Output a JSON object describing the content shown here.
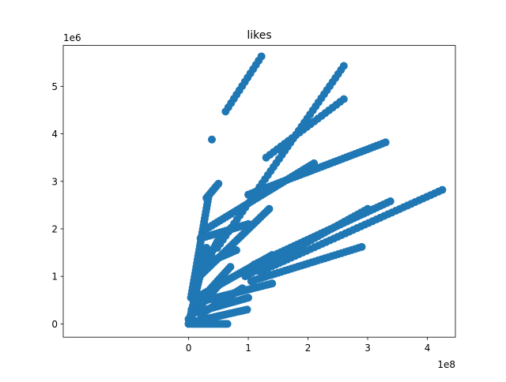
{
  "chart_data": {
    "type": "scatter",
    "title": "likes",
    "xlabel": "",
    "ylabel": "",
    "x_multiplier_label": "1e8",
    "y_multiplier_label": "1e6",
    "xlim": [
      -2.1,
      4.47
    ],
    "ylim": [
      -0.28,
      5.86
    ],
    "x_ticks": [
      {
        "value": 0,
        "label": "0"
      },
      {
        "value": 1,
        "label": "1"
      },
      {
        "value": 2,
        "label": "2"
      },
      {
        "value": 3,
        "label": "3"
      },
      {
        "value": 4,
        "label": "4"
      }
    ],
    "y_ticks": [
      {
        "value": 0,
        "label": "0"
      },
      {
        "value": 1,
        "label": "1"
      },
      {
        "value": 2,
        "label": "2"
      },
      {
        "value": 3,
        "label": "3"
      },
      {
        "value": 4,
        "label": "4"
      },
      {
        "value": 5,
        "label": "5"
      }
    ],
    "grid": false,
    "legend": "none",
    "point_color": "#1f77b4",
    "streaks": [
      {
        "x0": 0.62,
        "y0": 4.47,
        "x1": 1.22,
        "y1": 5.63,
        "n": 14
      },
      {
        "x0": 0.48,
        "y0": 1.6,
        "x1": 2.6,
        "y1": 5.43,
        "n": 46
      },
      {
        "x0": 1.3,
        "y0": 3.5,
        "x1": 2.6,
        "y1": 4.73,
        "n": 22
      },
      {
        "x0": 0.3,
        "y0": 2.0,
        "x1": 2.1,
        "y1": 3.38,
        "n": 40
      },
      {
        "x0": 1.0,
        "y0": 2.72,
        "x1": 3.3,
        "y1": 3.82,
        "n": 46
      },
      {
        "x0": 1.1,
        "y0": 1.25,
        "x1": 3.38,
        "y1": 2.58,
        "n": 42
      },
      {
        "x0": 1.2,
        "y0": 1.1,
        "x1": 4.25,
        "y1": 2.82,
        "n": 48
      },
      {
        "x0": 0.95,
        "y0": 1.0,
        "x1": 3.0,
        "y1": 2.42,
        "n": 38
      },
      {
        "x0": 1.05,
        "y0": 0.9,
        "x1": 2.9,
        "y1": 1.62,
        "n": 34
      },
      {
        "x0": 0.04,
        "y0": 0.55,
        "x1": 0.33,
        "y1": 2.65,
        "n": 30
      },
      {
        "x0": 0.3,
        "y0": 2.65,
        "x1": 0.5,
        "y1": 2.95,
        "n": 10
      },
      {
        "x0": 0.1,
        "y0": 0.9,
        "x1": 1.35,
        "y1": 2.42,
        "n": 36
      },
      {
        "x0": 0.2,
        "y0": 0.6,
        "x1": 1.4,
        "y1": 1.45,
        "n": 32
      },
      {
        "x0": 0.3,
        "y0": 0.5,
        "x1": 1.4,
        "y1": 0.85,
        "n": 28
      },
      {
        "x0": 0.15,
        "y0": 0.25,
        "x1": 1.0,
        "y1": 0.55,
        "n": 24
      },
      {
        "x0": 0.1,
        "y0": 0.05,
        "x1": 0.98,
        "y1": 0.3,
        "n": 22
      },
      {
        "x0": 0.05,
        "y0": 0.0,
        "x1": 0.65,
        "y1": 0.0,
        "n": 20
      },
      {
        "x0": 0.2,
        "y0": 1.8,
        "x1": 1.0,
        "y1": 2.1,
        "n": 18
      },
      {
        "x0": 0.15,
        "y0": 1.2,
        "x1": 0.8,
        "y1": 1.55,
        "n": 20
      },
      {
        "x0": 0.0,
        "y0": 0.0,
        "x1": 0.3,
        "y1": 1.6,
        "n": 26
      },
      {
        "x0": 0.0,
        "y0": 0.1,
        "x1": 0.6,
        "y1": 0.95,
        "n": 24
      },
      {
        "x0": 0.05,
        "y0": 0.3,
        "x1": 0.7,
        "y1": 1.2,
        "n": 22
      },
      {
        "x0": 0.1,
        "y0": 0.8,
        "x1": 0.55,
        "y1": 1.9,
        "n": 20
      },
      {
        "x0": 0.2,
        "y0": 0.2,
        "x1": 0.9,
        "y1": 0.75,
        "n": 20
      },
      {
        "x0": 0.0,
        "y0": 0.0,
        "x1": 0.1,
        "y1": 0.5,
        "n": 12
      }
    ],
    "points": [
      {
        "x": 0.39,
        "y": 3.88
      }
    ]
  }
}
